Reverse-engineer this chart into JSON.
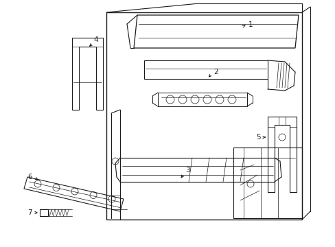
{
  "background_color": "#ffffff",
  "line_color": "#1a1a1a",
  "figsize": [
    4.89,
    3.6
  ],
  "dpi": 100,
  "label_fontsize": 7.5
}
